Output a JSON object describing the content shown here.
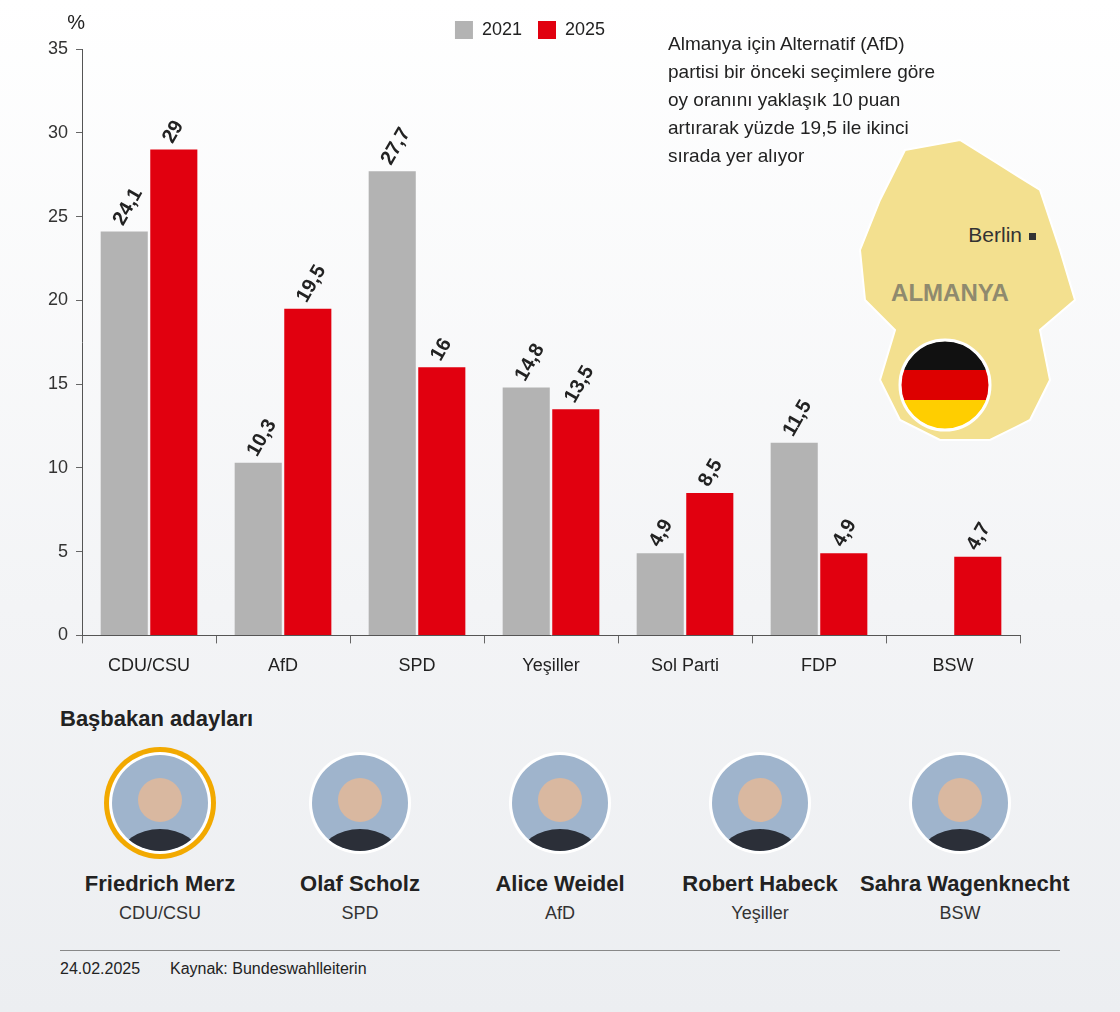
{
  "chart_data": {
    "type": "bar",
    "y_label": "%",
    "annotation": "Almanya için Alternatif (AfD) partisi bir önceki seçimlere göre oy oranını yaklaşık 10 puan artırarak yüzde 19,5 ile ikinci sırada yer alıyor",
    "categories": [
      "CDU/CSU",
      "AfD",
      "SPD",
      "Yeşiller",
      "Sol Parti",
      "FDP",
      "BSW"
    ],
    "series": [
      {
        "name": "2021",
        "color": "#b3b3b3",
        "values": [
          24.1,
          10.3,
          27.7,
          14.8,
          4.9,
          11.5,
          null
        ],
        "value_labels": [
          "24,1",
          "10,3",
          "27,7",
          "14,8",
          "4,9",
          "11,5",
          null
        ]
      },
      {
        "name": "2025",
        "color": "#e1000f",
        "values": [
          29,
          19.5,
          16,
          13.5,
          8.5,
          4.9,
          4.7
        ],
        "value_labels": [
          "29",
          "19,5",
          "16",
          "13,5",
          "8,5",
          "4,9",
          "4,7"
        ]
      }
    ],
    "ylim": [
      0,
      35
    ],
    "yticks": [
      0,
      5,
      10,
      15,
      20,
      25,
      30,
      35
    ],
    "grid": false,
    "legend": "top",
    "data_labels": true
  },
  "map": {
    "country": "ALMANYA",
    "capital": "Berlin"
  },
  "candidates": {
    "title": "Başbakan adayları",
    "people": [
      {
        "name": "Friedrich Merz",
        "party": "CDU/CSU"
      },
      {
        "name": "Olaf Scholz",
        "party": "SPD"
      },
      {
        "name": "Alice Weidel",
        "party": "AfD"
      },
      {
        "name": "Robert Habeck",
        "party": "Yeşiller"
      },
      {
        "name": "Sahra Wagenknecht",
        "party": "BSW"
      }
    ]
  },
  "footer": {
    "date": "24.02.2025",
    "source": "Kaynak: Bundeswahlleiterin"
  }
}
